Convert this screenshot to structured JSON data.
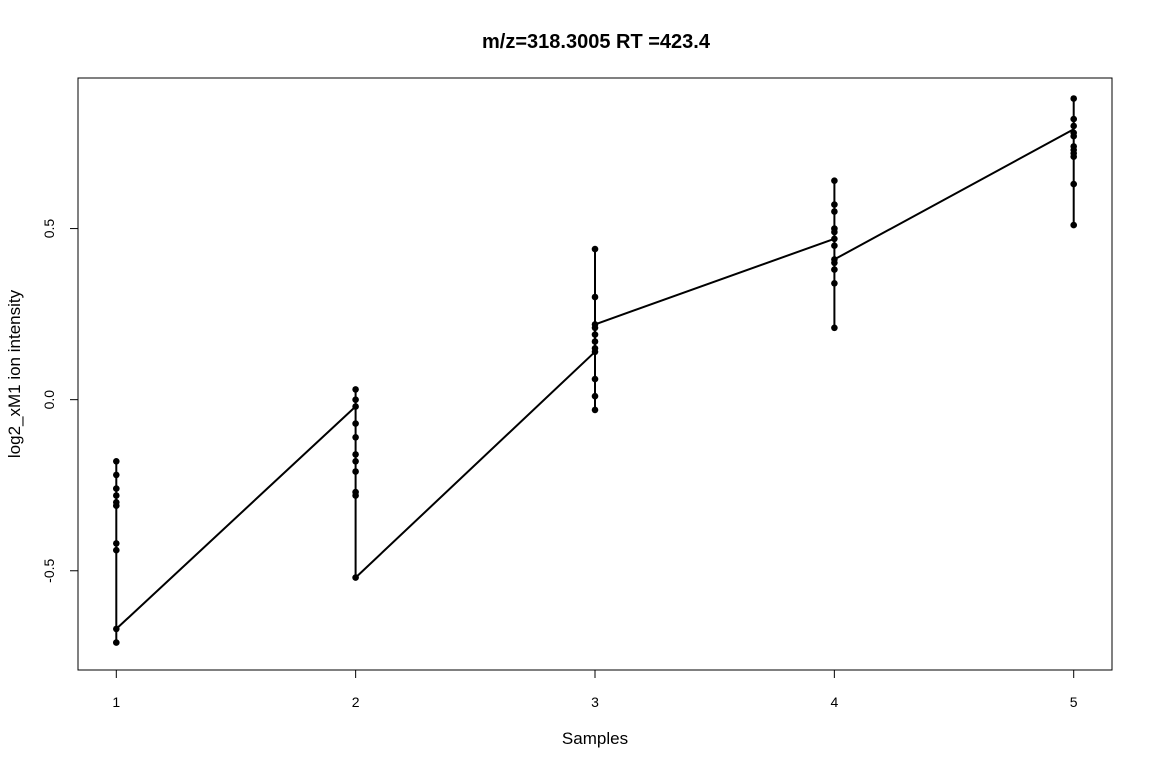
{
  "chart_data": {
    "type": "line",
    "title": "m/z=318.3005 RT =423.4",
    "xlabel": "Samples",
    "ylabel": "log2_xM1 ion intensity",
    "xlim": [
      0.84,
      5.16
    ],
    "ylim": [
      -0.79,
      0.94
    ],
    "x_ticks": [
      1,
      2,
      3,
      4,
      5
    ],
    "x_tick_labels": [
      "1",
      "2",
      "3",
      "4",
      "5"
    ],
    "y_ticks": [
      -0.5,
      0.0,
      0.5
    ],
    "y_tick_labels": [
      "-0.5",
      "0.0",
      "0.5"
    ],
    "grid": false,
    "legend": "none",
    "color": "#000000",
    "points": [
      {
        "x": 1,
        "y": -0.18
      },
      {
        "x": 1,
        "y": -0.22
      },
      {
        "x": 1,
        "y": -0.26
      },
      {
        "x": 1,
        "y": -0.28
      },
      {
        "x": 1,
        "y": -0.3
      },
      {
        "x": 1,
        "y": -0.31
      },
      {
        "x": 1,
        "y": -0.42
      },
      {
        "x": 1,
        "y": -0.44
      },
      {
        "x": 1,
        "y": -0.67
      },
      {
        "x": 1,
        "y": -0.71
      },
      {
        "x": 2,
        "y": 0.03
      },
      {
        "x": 2,
        "y": 0.0
      },
      {
        "x": 2,
        "y": -0.02
      },
      {
        "x": 2,
        "y": -0.07
      },
      {
        "x": 2,
        "y": -0.11
      },
      {
        "x": 2,
        "y": -0.16
      },
      {
        "x": 2,
        "y": -0.18
      },
      {
        "x": 2,
        "y": -0.21
      },
      {
        "x": 2,
        "y": -0.27
      },
      {
        "x": 2,
        "y": -0.28
      },
      {
        "x": 2,
        "y": -0.52
      },
      {
        "x": 3,
        "y": 0.44
      },
      {
        "x": 3,
        "y": 0.3
      },
      {
        "x": 3,
        "y": 0.22
      },
      {
        "x": 3,
        "y": 0.21
      },
      {
        "x": 3,
        "y": 0.19
      },
      {
        "x": 3,
        "y": 0.17
      },
      {
        "x": 3,
        "y": 0.15
      },
      {
        "x": 3,
        "y": 0.14
      },
      {
        "x": 3,
        "y": 0.06
      },
      {
        "x": 3,
        "y": 0.01
      },
      {
        "x": 3,
        "y": -0.03
      },
      {
        "x": 4,
        "y": 0.64
      },
      {
        "x": 4,
        "y": 0.57
      },
      {
        "x": 4,
        "y": 0.55
      },
      {
        "x": 4,
        "y": 0.5
      },
      {
        "x": 4,
        "y": 0.49
      },
      {
        "x": 4,
        "y": 0.47
      },
      {
        "x": 4,
        "y": 0.45
      },
      {
        "x": 4,
        "y": 0.41
      },
      {
        "x": 4,
        "y": 0.4
      },
      {
        "x": 4,
        "y": 0.38
      },
      {
        "x": 4,
        "y": 0.34
      },
      {
        "x": 4,
        "y": 0.21
      },
      {
        "x": 5,
        "y": 0.88
      },
      {
        "x": 5,
        "y": 0.82
      },
      {
        "x": 5,
        "y": 0.8
      },
      {
        "x": 5,
        "y": 0.78
      },
      {
        "x": 5,
        "y": 0.77
      },
      {
        "x": 5,
        "y": 0.74
      },
      {
        "x": 5,
        "y": 0.73
      },
      {
        "x": 5,
        "y": 0.72
      },
      {
        "x": 5,
        "y": 0.71
      },
      {
        "x": 5,
        "y": 0.63
      },
      {
        "x": 5,
        "y": 0.51
      }
    ],
    "connecting_line": [
      {
        "x": 1,
        "y": -0.18
      },
      {
        "x": 1,
        "y": -0.71
      },
      {
        "x": 1,
        "y": -0.67
      },
      {
        "x": 2,
        "y": -0.02
      },
      {
        "x": 2,
        "y": 0.03
      },
      {
        "x": 2,
        "y": -0.52
      },
      {
        "x": 3,
        "y": 0.14
      },
      {
        "x": 3,
        "y": 0.44
      },
      {
        "x": 3,
        "y": -0.03
      },
      {
        "x": 3,
        "y": 0.22
      },
      {
        "x": 4,
        "y": 0.47
      },
      {
        "x": 4,
        "y": 0.64
      },
      {
        "x": 4,
        "y": 0.21
      },
      {
        "x": 4,
        "y": 0.41
      },
      {
        "x": 5,
        "y": 0.79
      },
      {
        "x": 5,
        "y": 0.88
      },
      {
        "x": 5,
        "y": 0.51
      }
    ]
  }
}
